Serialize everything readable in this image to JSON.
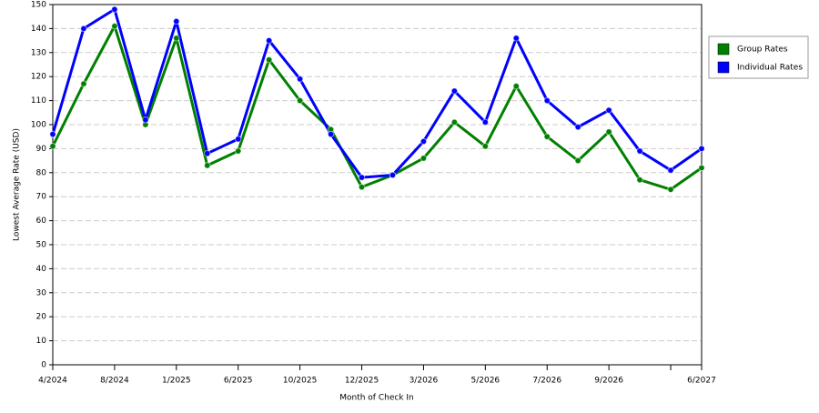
{
  "chart_data": {
    "type": "line",
    "x_label": "Month of Check In",
    "y_label": "Lowest Average Rate (USD)",
    "categories": [
      "4/2024",
      null,
      "8/2024",
      null,
      "1/2025",
      null,
      "6/2025",
      null,
      "10/2025",
      null,
      "12/2025",
      null,
      "3/2026",
      null,
      "5/2026",
      null,
      "7/2026",
      null,
      "9/2026",
      null,
      null,
      "6/2027"
    ],
    "series": [
      {
        "name": "Group Rates",
        "color": "#008000",
        "values": [
          91,
          117,
          141,
          100,
          136,
          83,
          89,
          127,
          110,
          98,
          74,
          79,
          86,
          101,
          91,
          116,
          95,
          85,
          97,
          77,
          73,
          82
        ]
      },
      {
        "name": "Individual Rates",
        "color": "#0000ff",
        "values": [
          96,
          140,
          148,
          102,
          143,
          88,
          94,
          135,
          119,
          96,
          78,
          79,
          93,
          114,
          101,
          136,
          110,
          99,
          106,
          89,
          81,
          90
        ]
      }
    ],
    "ylim": [
      0,
      150
    ],
    "yticks": [
      0,
      10,
      20,
      30,
      40,
      50,
      60,
      70,
      80,
      90,
      100,
      110,
      120,
      130,
      140,
      150
    ],
    "grid": true,
    "legend": "right"
  }
}
